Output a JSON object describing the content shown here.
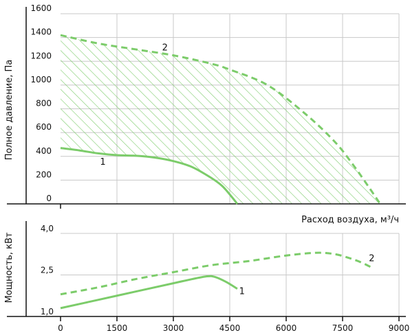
{
  "chart_data": [
    {
      "type": "line",
      "ylabel": "Полное давление, Па",
      "ylim": [
        0,
        1600
      ],
      "xlim": [
        0,
        9000
      ],
      "y_ticks": [
        "0",
        "200",
        "400",
        "600",
        "800",
        "1000",
        "1200",
        "1400",
        "1600"
      ],
      "grid": true,
      "hatched_region": "between curve 1 and curve 2",
      "colors": {
        "curve": "#7ccc6a",
        "hatch": "#7ccc6a",
        "grid": "#c8c8c8",
        "axis": "#111111"
      },
      "series": [
        {
          "name": "1",
          "style": "solid",
          "x": [
            0,
            500,
            1000,
            1500,
            2000,
            2500,
            3000,
            3500,
            4000,
            4300,
            4550,
            4700
          ],
          "y": [
            470,
            450,
            425,
            410,
            405,
            390,
            360,
            310,
            220,
            150,
            60,
            0
          ]
        },
        {
          "name": "2",
          "style": "dashed",
          "x": [
            0,
            1000,
            2000,
            3000,
            4000,
            4500,
            5500,
            6500,
            7300,
            7800,
            8200,
            8500
          ],
          "y": [
            1420,
            1350,
            1300,
            1250,
            1180,
            1130,
            1000,
            760,
            520,
            320,
            140,
            0
          ]
        }
      ]
    },
    {
      "type": "line",
      "xlabel": "Расход воздуха, м³/ч",
      "ylabel": "Мощность, кВт",
      "xlim": [
        0,
        9000
      ],
      "ylim": [
        1.0,
        4.0
      ],
      "x_ticks": [
        "0",
        "1500",
        "3000",
        "4500",
        "6000",
        "7500",
        "9000"
      ],
      "y_ticks": [
        "1,0",
        "2,5",
        "4,0"
      ],
      "grid": true,
      "series": [
        {
          "name": "1",
          "style": "solid",
          "x": [
            0,
            1000,
            2000,
            3000,
            3500,
            3900,
            4100,
            4400,
            4700
          ],
          "y": [
            1.3,
            1.6,
            1.9,
            2.2,
            2.35,
            2.45,
            2.43,
            2.25,
            2.0
          ]
        },
        {
          "name": "2",
          "style": "dashed",
          "x": [
            0,
            1000,
            2000,
            3000,
            4000,
            5000,
            6000,
            6800,
            7300,
            7700,
            8000,
            8300
          ],
          "y": [
            1.8,
            2.05,
            2.35,
            2.6,
            2.85,
            3.0,
            3.2,
            3.3,
            3.25,
            3.1,
            2.95,
            2.75
          ]
        }
      ]
    }
  ]
}
